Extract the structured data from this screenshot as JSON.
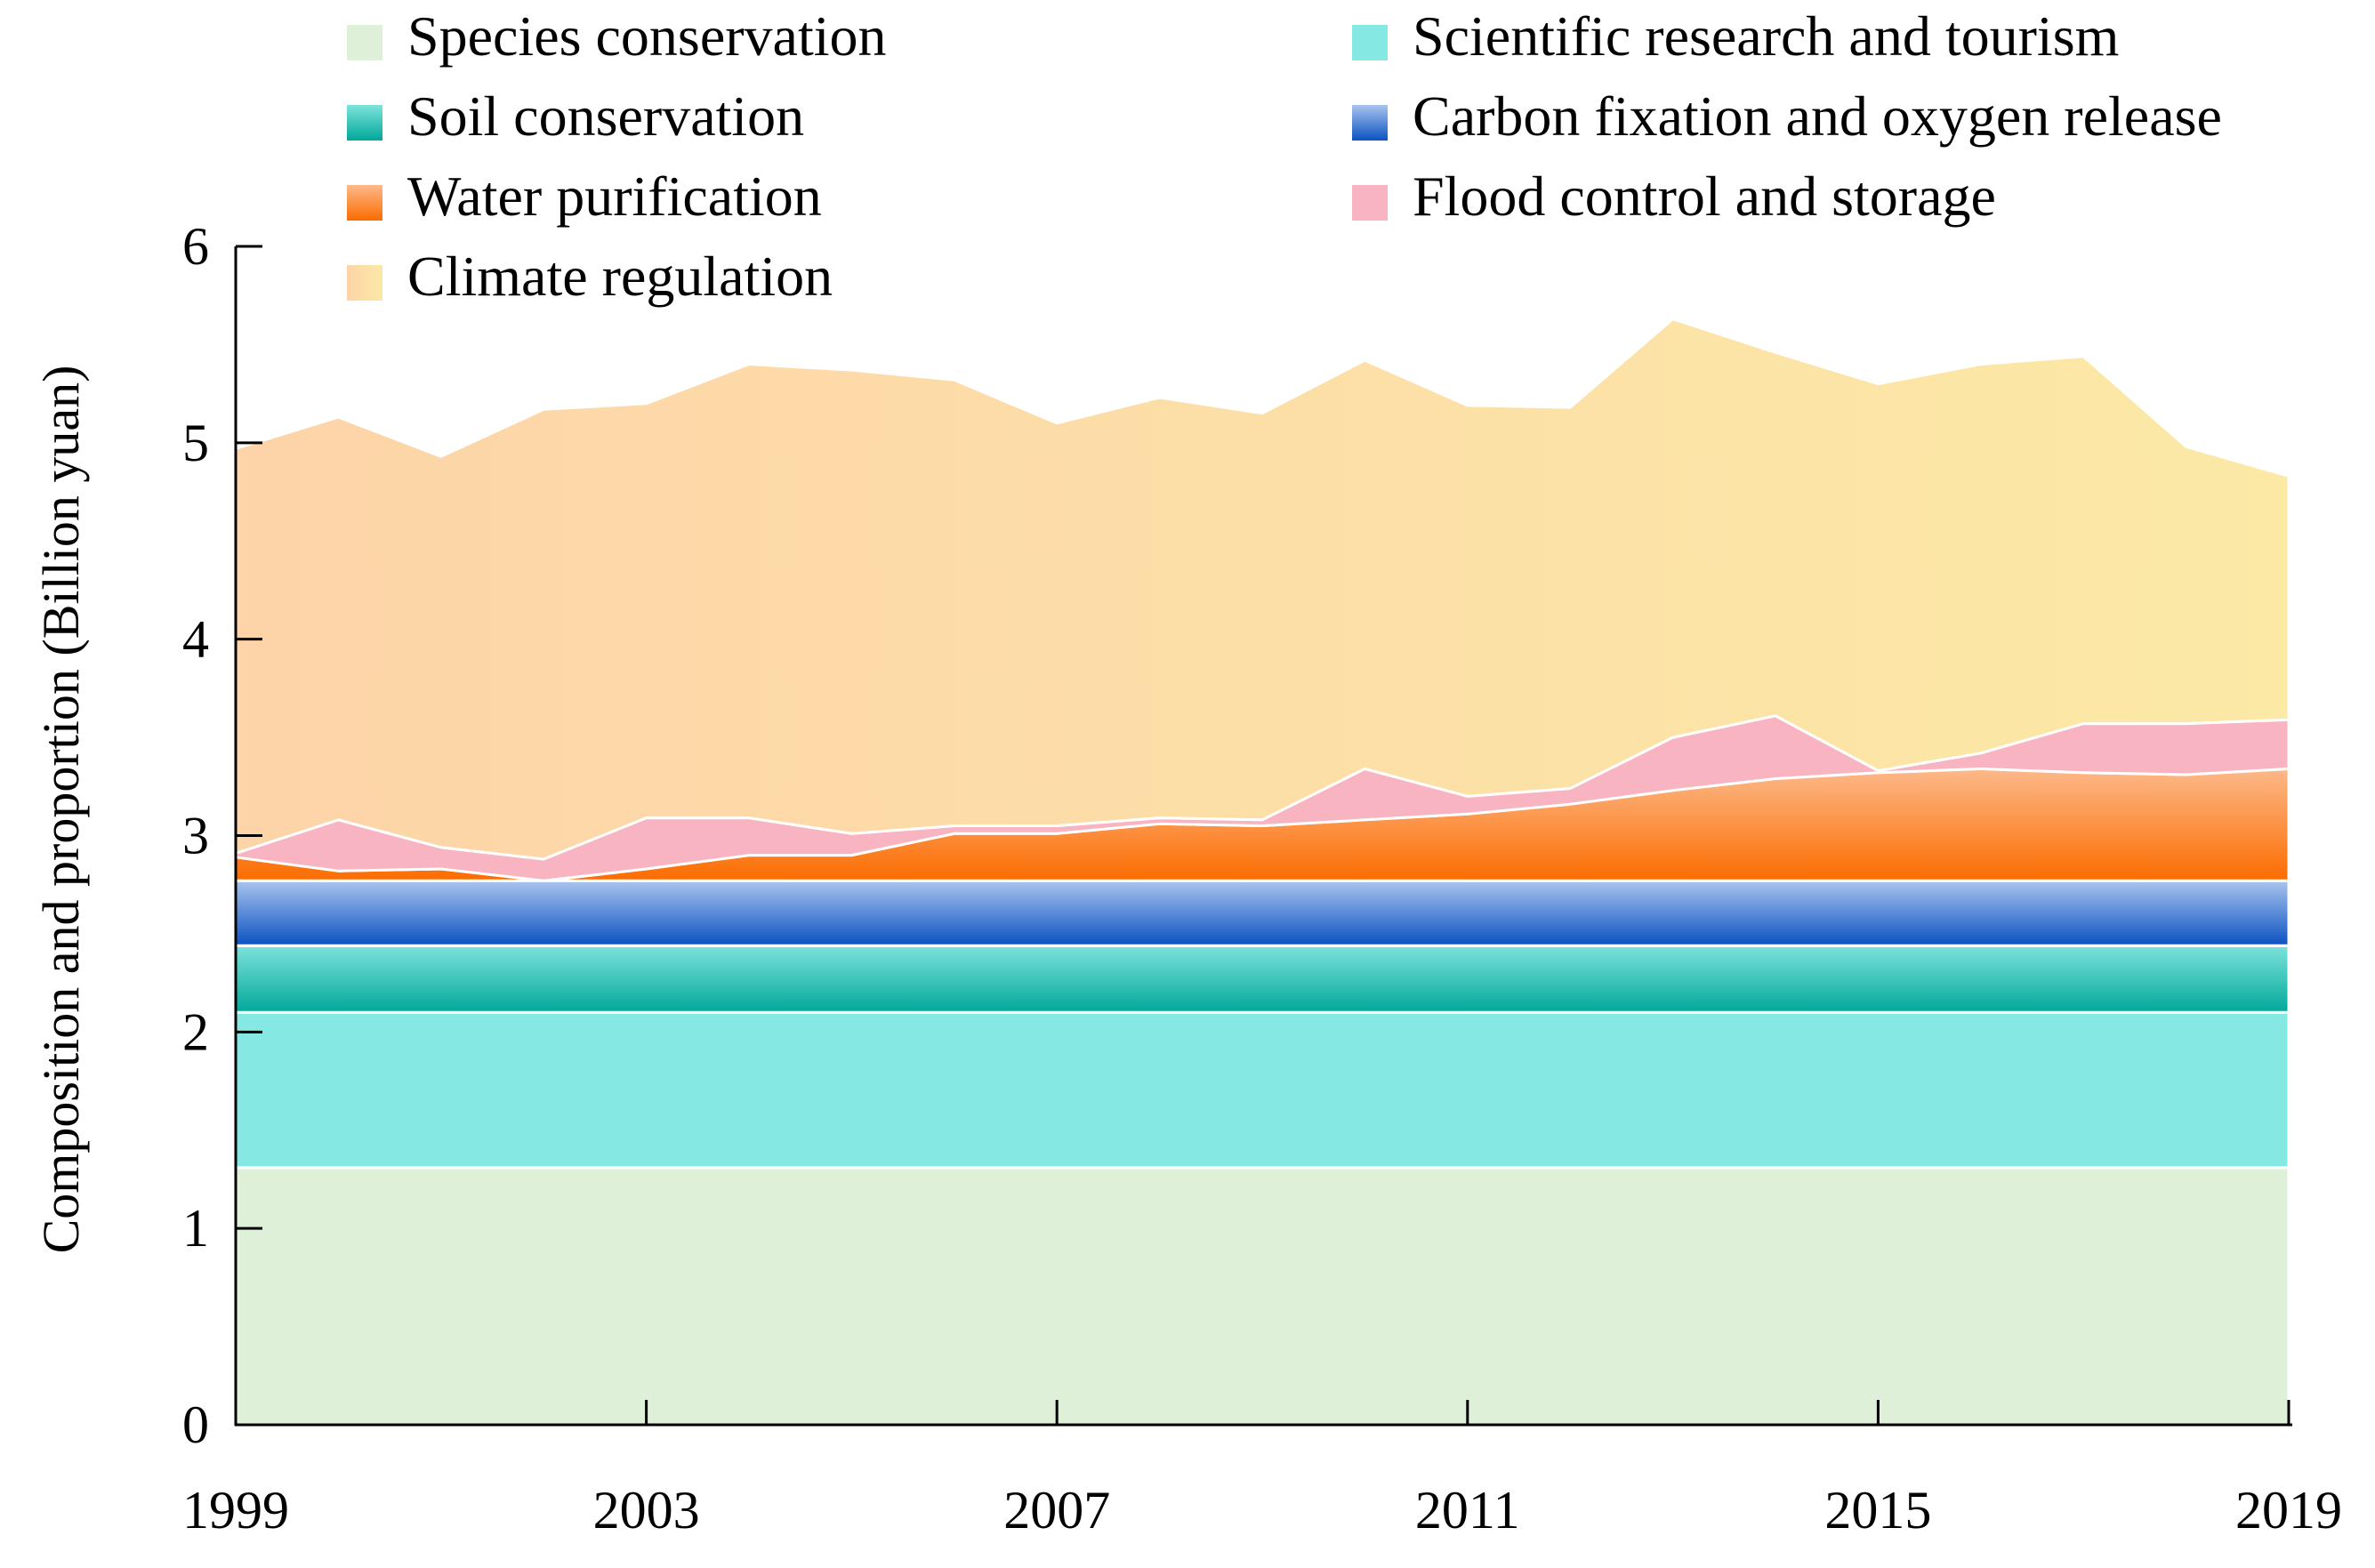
{
  "chart_data": {
    "type": "area",
    "stacked": true,
    "ylabel": "Composition and proportion (Billion yuan)",
    "xlabel": "",
    "ylim": [
      0,
      6
    ],
    "xlim": [
      1999,
      2019
    ],
    "x_ticks": [
      "1999",
      "2003",
      "2007",
      "2011",
      "2015",
      "2019"
    ],
    "y_ticks": [
      "0",
      "1",
      "2",
      "3",
      "4",
      "5",
      "6"
    ],
    "legend_position": "top",
    "x": [
      1999,
      2000,
      2001,
      2002,
      2003,
      2004,
      2005,
      2006,
      2007,
      2008,
      2009,
      2010,
      2011,
      2012,
      2013,
      2014,
      2015,
      2016,
      2017,
      2018,
      2019
    ],
    "series": [
      {
        "name": "Species conservation",
        "color_top": "#dff0d8",
        "color_bottom": "#dff0d8",
        "values": [
          1.31,
          1.31,
          1.31,
          1.31,
          1.31,
          1.31,
          1.31,
          1.31,
          1.31,
          1.31,
          1.31,
          1.31,
          1.31,
          1.31,
          1.31,
          1.31,
          1.31,
          1.31,
          1.31,
          1.31,
          1.31
        ]
      },
      {
        "name": "Scientific research and tourism",
        "color_top": "#85e8e2",
        "color_bottom": "#85e8e2",
        "values": [
          0.79,
          0.79,
          0.79,
          0.79,
          0.79,
          0.79,
          0.79,
          0.79,
          0.79,
          0.79,
          0.79,
          0.79,
          0.79,
          0.79,
          0.79,
          0.79,
          0.79,
          0.79,
          0.79,
          0.79,
          0.79
        ]
      },
      {
        "name": "Soil conservation",
        "color_top": "#7ee3dc",
        "color_bottom": "#00a89a",
        "values": [
          0.34,
          0.34,
          0.34,
          0.34,
          0.34,
          0.34,
          0.34,
          0.34,
          0.34,
          0.34,
          0.34,
          0.34,
          0.34,
          0.34,
          0.34,
          0.34,
          0.34,
          0.34,
          0.34,
          0.34,
          0.34
        ]
      },
      {
        "name": "Carbon fixation and oxygen release",
        "color_top": "#aac4ee",
        "color_bottom": "#0a52c2",
        "values": [
          0.33,
          0.33,
          0.33,
          0.33,
          0.33,
          0.33,
          0.33,
          0.33,
          0.33,
          0.33,
          0.33,
          0.33,
          0.33,
          0.33,
          0.33,
          0.33,
          0.33,
          0.33,
          0.33,
          0.33,
          0.33
        ]
      },
      {
        "name": "Water purification",
        "color_top": "#fdb98a",
        "color_bottom": "#fb6c00",
        "values": [
          0.12,
          0.05,
          0.06,
          0.0,
          0.06,
          0.13,
          0.13,
          0.24,
          0.24,
          0.29,
          0.28,
          0.31,
          0.34,
          0.39,
          0.46,
          0.52,
          0.55,
          0.57,
          0.55,
          0.54,
          0.57
        ]
      },
      {
        "name": "Flood control and storage",
        "color_top": "#f8b4c0",
        "color_bottom": "#f8b4c0",
        "values": [
          0.02,
          0.26,
          0.11,
          0.11,
          0.26,
          0.19,
          0.11,
          0.04,
          0.04,
          0.03,
          0.03,
          0.26,
          0.09,
          0.08,
          0.27,
          0.32,
          0.01,
          0.08,
          0.25,
          0.26,
          0.25
        ]
      },
      {
        "name": "Climate regulation",
        "color_top": "#fdd4a8",
        "color_bottom": "#fce9a6",
        "values": [
          2.06,
          2.05,
          1.99,
          2.29,
          2.11,
          2.31,
          2.36,
          2.27,
          2.05,
          2.14,
          2.07,
          2.08,
          1.99,
          1.94,
          2.13,
          1.85,
          1.97,
          1.98,
          1.87,
          1.41,
          1.24
        ]
      }
    ]
  }
}
